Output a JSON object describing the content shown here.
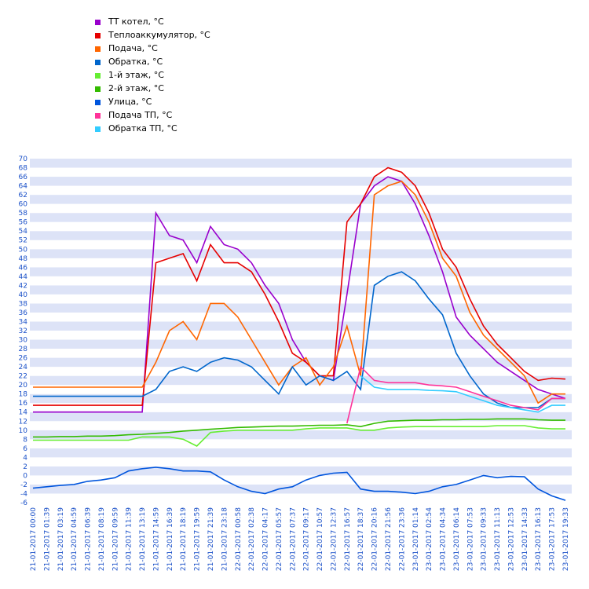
{
  "chart_data": {
    "type": "line",
    "categories": [
      "21-01-2017 00:00",
      "21-01-2017 01:39",
      "21-01-2017 03:19",
      "21-01-2017 04:59",
      "21-01-2017 06:39",
      "21-01-2017 08:19",
      "21-01-2017 09:59",
      "21-01-2017 11:39",
      "21-01-2017 13:19",
      "21-01-2017 14:59",
      "21-01-2017 16:39",
      "21-01-2017 18:19",
      "21-01-2017 19:59",
      "21-01-2017 21:39",
      "21-01-2017 23:18",
      "22-01-2017 00:58",
      "22-01-2017 02:38",
      "22-01-2017 04:17",
      "22-01-2017 05:57",
      "22-01-2017 07:37",
      "22-01-2017 09:17",
      "22-01-2017 10:57",
      "22-01-2017 12:37",
      "22-01-2017 16:57",
      "22-01-2017 18:37",
      "22-01-2017 20:16",
      "22-01-2017 21:56",
      "22-01-2017 23:36",
      "23-01-2017 01:14",
      "23-01-2017 02:54",
      "23-01-2017 04:34",
      "23-01-2017 06:14",
      "23-01-2017 07:53",
      "23-01-2017 09:33",
      "23-01-2017 11:13",
      "23-01-2017 12:53",
      "23-01-2017 14:33",
      "23-01-2017 16:13",
      "23-01-2017 17:53",
      "23-01-2017 19:33"
    ],
    "series": [
      {
        "name": "ТТ котел, °С",
        "color": "#9900cc",
        "values": [
          14,
          14,
          14,
          14,
          14,
          14,
          14,
          14,
          14,
          58,
          53,
          52,
          47,
          55,
          51,
          50,
          47,
          42,
          38,
          30,
          25,
          22,
          21,
          40,
          60,
          64,
          66,
          65,
          60,
          53,
          45,
          35,
          31,
          28,
          25,
          23,
          21,
          19,
          18,
          17
        ]
      },
      {
        "name": "Теплоаккумулятор, °С",
        "color": "#e60000",
        "values": [
          15.5,
          15.5,
          15.5,
          15.5,
          15.5,
          15.5,
          15.5,
          15.5,
          15.5,
          47,
          48,
          49,
          43,
          51,
          47,
          47,
          45,
          40,
          34,
          27,
          25,
          22,
          22,
          56,
          60,
          66,
          68,
          67,
          64,
          58,
          50,
          46,
          39,
          33,
          29,
          26,
          23,
          21,
          21.5,
          21.3
        ]
      },
      {
        "name": "Подача, °С",
        "color": "#ff6600",
        "values": [
          19.5,
          19.5,
          19.5,
          19.5,
          19.5,
          19.5,
          19.5,
          19.5,
          19.5,
          25,
          32,
          34,
          30,
          38,
          38,
          35,
          30,
          25,
          20,
          24,
          26,
          20,
          24,
          33,
          22,
          62,
          64,
          65,
          62,
          56,
          48,
          44,
          36,
          31,
          28,
          25,
          22,
          16,
          18,
          18
        ]
      },
      {
        "name": "Обратка, °С",
        "color": "#0066cc",
        "values": [
          17.5,
          17.5,
          17.5,
          17.5,
          17.5,
          17.5,
          17.5,
          17.5,
          17.5,
          19,
          23,
          24,
          23,
          25,
          26,
          25.5,
          24,
          21,
          18,
          24,
          20,
          22,
          21,
          23,
          19,
          42,
          44,
          45,
          43,
          39,
          35.5,
          27,
          22,
          18,
          16,
          15,
          15,
          15,
          17,
          17
        ]
      },
      {
        "name": "1-й этаж, °С",
        "color": "#66ee33",
        "values": [
          7.8,
          7.8,
          7.8,
          7.8,
          7.8,
          7.8,
          7.8,
          7.8,
          8.5,
          8.5,
          8.5,
          8,
          6.5,
          9.5,
          9.8,
          10,
          10,
          10,
          10,
          10,
          10.3,
          10.5,
          10.5,
          10.5,
          10,
          10,
          10.5,
          10.7,
          10.8,
          10.8,
          10.8,
          10.8,
          10.8,
          10.8,
          11,
          11,
          11,
          10.5,
          10.3,
          10.3
        ]
      },
      {
        "name": "2-й этаж, °С",
        "color": "#33bb00",
        "values": [
          8.5,
          8.5,
          8.6,
          8.6,
          8.7,
          8.7,
          8.8,
          9,
          9.1,
          9.3,
          9.5,
          9.8,
          10,
          10.2,
          10.4,
          10.6,
          10.7,
          10.8,
          10.9,
          10.9,
          11,
          11.1,
          11.1,
          11.2,
          10.8,
          11.5,
          12,
          12.1,
          12.2,
          12.2,
          12.3,
          12.3,
          12.4,
          12.4,
          12.5,
          12.5,
          12.5,
          12.3,
          12.2,
          12.2
        ]
      },
      {
        "name": "Улица, °С",
        "color": "#0055dd",
        "values": [
          -2.8,
          -2.5,
          -2.2,
          -2,
          -1.3,
          -1,
          -0.5,
          1,
          1.5,
          1.8,
          1.5,
          1,
          1,
          0.8,
          -1,
          -2.5,
          -3.5,
          -4,
          -3,
          -2.5,
          -1,
          0,
          0.5,
          0.7,
          -3,
          -3.5,
          -3.5,
          -3.7,
          -4,
          -3.5,
          -2.5,
          -2,
          -1,
          0,
          -0.5,
          -0.2,
          -0.3,
          -3,
          -4.5,
          -5.5
        ]
      },
      {
        "name": "Подача ТП, °С",
        "color": "#ff3399",
        "values": [
          null,
          null,
          null,
          null,
          null,
          null,
          null,
          null,
          null,
          null,
          null,
          null,
          null,
          null,
          null,
          null,
          null,
          null,
          null,
          null,
          null,
          null,
          null,
          11.5,
          24,
          21,
          20.5,
          20.5,
          20.5,
          20,
          19.8,
          19.5,
          18.5,
          17.5,
          16.5,
          15.5,
          15,
          14.5,
          17,
          17
        ]
      },
      {
        "name": "Обратка ТП, °С",
        "color": "#33ccff",
        "values": [
          null,
          null,
          null,
          null,
          null,
          null,
          null,
          null,
          null,
          null,
          null,
          null,
          null,
          null,
          null,
          null,
          null,
          null,
          null,
          null,
          null,
          null,
          null,
          null,
          22,
          19.5,
          19,
          19,
          19,
          18.8,
          18.7,
          18.5,
          17.5,
          16.5,
          15.5,
          15,
          14.5,
          14,
          15.5,
          15.5
        ]
      }
    ],
    "ylim": [
      -6,
      70
    ],
    "yticks": [
      -6,
      -4,
      -2,
      0,
      2,
      4,
      6,
      8,
      10,
      12,
      14,
      16,
      18,
      20,
      22,
      24,
      26,
      28,
      30,
      32,
      34,
      36,
      38,
      40,
      42,
      44,
      46,
      48,
      50,
      52,
      54,
      56,
      58,
      60,
      62,
      64,
      66,
      68,
      70
    ],
    "grid": true
  }
}
